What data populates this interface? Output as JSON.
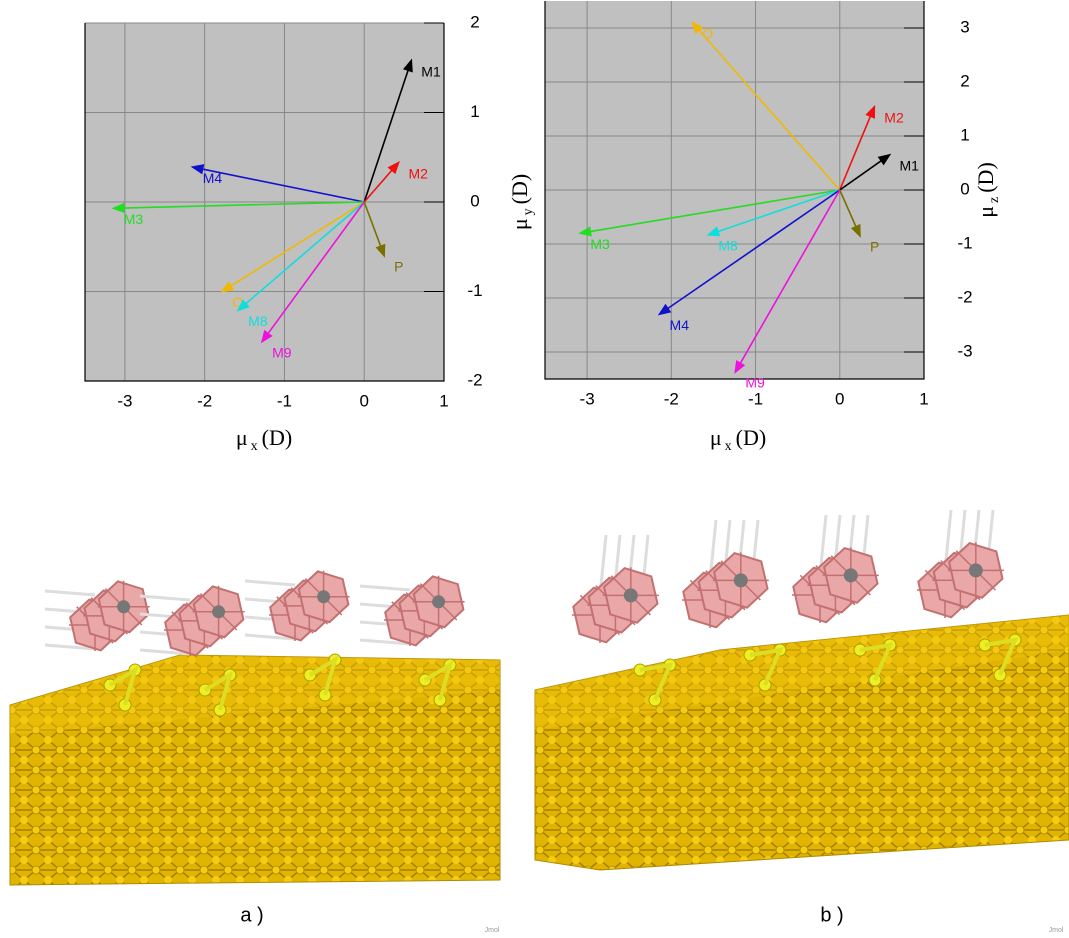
{
  "chart_data": [
    {
      "type": "vector",
      "x_label": {
        "symbol": "μ",
        "subscript": "x",
        "unit": "(D)"
      },
      "y_label": {
        "symbol": "μ",
        "subscript": "y",
        "unit": "(D)"
      },
      "xlim": [
        -3.5,
        1
      ],
      "ylim": [
        -2,
        2
      ],
      "xticks": [
        -3,
        -2,
        -1,
        0,
        1
      ],
      "yticks": [
        -2,
        -1,
        0,
        1,
        2
      ],
      "grid": true,
      "series": [
        {
          "name": "M1",
          "color": "#000000",
          "x": 0.59,
          "y": 1.58
        },
        {
          "name": "M2",
          "color": "#ee1111",
          "x": 0.43,
          "y": 0.44
        },
        {
          "name": "M4",
          "color": "#1111cc",
          "x": -2.15,
          "y": 0.39
        },
        {
          "name": "M3",
          "color": "#22dd22",
          "x": -3.14,
          "y": -0.07
        },
        {
          "name": "O",
          "color": "#f0b800",
          "x": -1.78,
          "y": -1.0
        },
        {
          "name": "M8",
          "color": "#11dddd",
          "x": -1.58,
          "y": -1.21
        },
        {
          "name": "M9",
          "color": "#ee11dd",
          "x": -1.28,
          "y": -1.56
        },
        {
          "name": "P",
          "color": "#7a7000",
          "x": 0.25,
          "y": -0.6
        }
      ]
    },
    {
      "type": "vector",
      "x_label": {
        "symbol": "μ",
        "subscript": "x",
        "unit": "(D)"
      },
      "y_label": {
        "symbol": "μ",
        "subscript": "z",
        "unit": "(D)"
      },
      "xlim": [
        -3.5,
        1
      ],
      "ylim": [
        -3.5,
        3.5
      ],
      "xticks": [
        -3,
        -2,
        -1,
        0,
        1
      ],
      "yticks": [
        -3,
        -2,
        -1,
        0,
        1,
        2,
        3
      ],
      "grid": true,
      "series": [
        {
          "name": "O",
          "color": "#f0b800",
          "x": -1.75,
          "y": 3.1
        },
        {
          "name": "M2",
          "color": "#ee1111",
          "x": 0.41,
          "y": 1.54
        },
        {
          "name": "M1",
          "color": "#000000",
          "x": 0.59,
          "y": 0.65
        },
        {
          "name": "P",
          "color": "#7a7000",
          "x": 0.24,
          "y": -0.85
        },
        {
          "name": "M3",
          "color": "#22dd22",
          "x": -3.08,
          "y": -0.8
        },
        {
          "name": "M8",
          "color": "#11dddd",
          "x": -1.56,
          "y": -0.83
        },
        {
          "name": "M4",
          "color": "#1111cc",
          "x": -2.14,
          "y": -2.3
        },
        {
          "name": "M9",
          "color": "#ee11dd",
          "x": -1.24,
          "y": -3.37
        }
      ]
    }
  ],
  "images": [
    {
      "caption": "a )",
      "watermark": "Jmol"
    },
    {
      "caption": "b )",
      "watermark": "Jmol"
    }
  ]
}
